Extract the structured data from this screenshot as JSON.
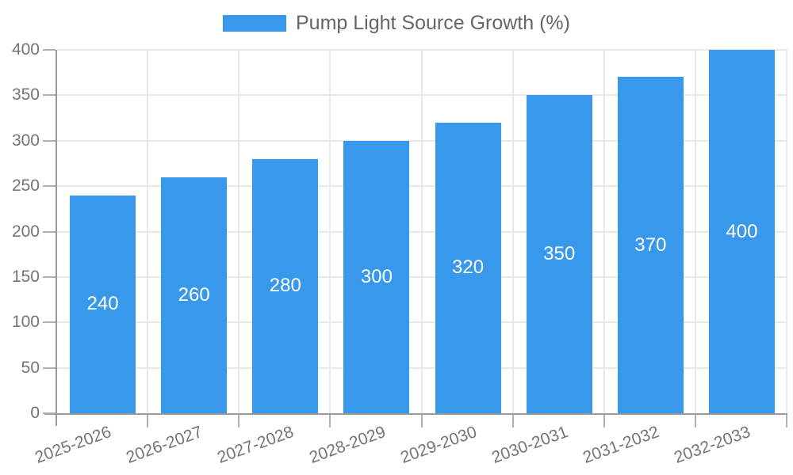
{
  "legend": {
    "label": "Pump Light Source Growth (%)",
    "swatch_color": "#3899EC"
  },
  "chart_data": {
    "type": "bar",
    "title": "",
    "series_name": "Pump Light Source Growth (%)",
    "categories": [
      "2025-2026",
      "2026-2027",
      "2027-2028",
      "2028-2029",
      "2029-2030",
      "2030-2031",
      "2031-2032",
      "2032-2033"
    ],
    "values": [
      240,
      260,
      280,
      300,
      320,
      350,
      370,
      400
    ],
    "value_labels": [
      "240",
      "260",
      "280",
      "300",
      "320",
      "350",
      "370",
      "400"
    ],
    "ylim": [
      0,
      400
    ],
    "yticks": [
      0,
      50,
      100,
      150,
      200,
      250,
      300,
      350,
      400
    ],
    "grid": "both",
    "legend_position": "top",
    "bar_color": "#3899EC",
    "value_label_color": "#FFFFFF",
    "axis_color": "#999999",
    "grid_color": "#E8E8E8",
    "tick_label_color": "#757575",
    "x_label_rotation_deg": -20
  }
}
